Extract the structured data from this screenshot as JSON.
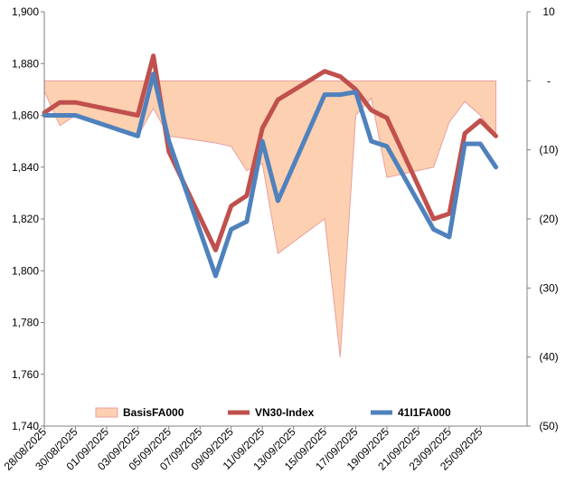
{
  "chart_data": {
    "type": "line",
    "title": "",
    "x": [
      "28/08/2025",
      "29/08/2025",
      "30/08/2025",
      "03/09/2025",
      "04/09/2025",
      "05/09/2025",
      "08/09/2025",
      "09/09/2025",
      "10/09/2025",
      "11/09/2025",
      "12/09/2025",
      "15/09/2025",
      "16/09/2025",
      "17/09/2025",
      "18/09/2025",
      "19/09/2025",
      "22/09/2025",
      "23/09/2025",
      "24/09/2025",
      "25/09/2025",
      "26/09/2025"
    ],
    "x_tick_labels": [
      "28/08/2025",
      "30/08/2025",
      "01/09/2025",
      "03/09/2025",
      "05/09/2025",
      "07/09/2025",
      "09/09/2025",
      "11/09/2025",
      "13/09/2025",
      "15/09/2025",
      "17/09/2025",
      "19/09/2025",
      "21/09/2025",
      "23/09/2025",
      "25/09/2025"
    ],
    "x_range": [
      "28/08/2025",
      "28/09/2025"
    ],
    "y_left": {
      "min": 1740,
      "max": 1900,
      "ticks": [
        "1,740",
        "1,760",
        "1,780",
        "1,800",
        "1,820",
        "1,840",
        "1,860",
        "1,880",
        "1,900"
      ]
    },
    "y_right": {
      "min": -50,
      "max": 10,
      "ticks": [
        "10",
        "-",
        "(10)",
        "(20)",
        "(30)",
        "(40)",
        "(50)"
      ]
    },
    "series": [
      {
        "name": "BasisFA000",
        "type": "area",
        "axis": "right",
        "color": "#fcd0b0",
        "edge_color": "#e8a0a0",
        "values": [
          -1.5,
          -6.5,
          -5,
          -8,
          -4,
          -8,
          -9,
          -9.5,
          -13,
          -12,
          -25,
          -20,
          -40,
          -5,
          -2.5,
          -14,
          -12.5,
          -6,
          -3,
          -5,
          -8
        ]
      },
      {
        "name": "VN30-Index",
        "type": "line",
        "axis": "left",
        "color": "#c0504d",
        "values": [
          1861,
          1865,
          1865,
          1860,
          1883,
          1846,
          1808,
          1825,
          1829,
          1855,
          1866,
          1877,
          1875,
          1870,
          1862,
          1859,
          1820,
          1822,
          1853,
          1858,
          1852
        ]
      },
      {
        "name": "41I1FA000",
        "type": "line",
        "axis": "left",
        "color": "#4f81bd",
        "values": [
          1860,
          1860,
          1860,
          1852,
          1876,
          1850,
          1798,
          1816,
          1819,
          1850,
          1827,
          1868,
          1868,
          1869,
          1850,
          1848,
          1816,
          1813,
          1849,
          1849,
          1840
        ]
      }
    ],
    "legend": {
      "placement": "bottom-inside",
      "entries": [
        "BasisFA000",
        "VN30-Index",
        "41I1FA000"
      ]
    },
    "grid": false
  }
}
